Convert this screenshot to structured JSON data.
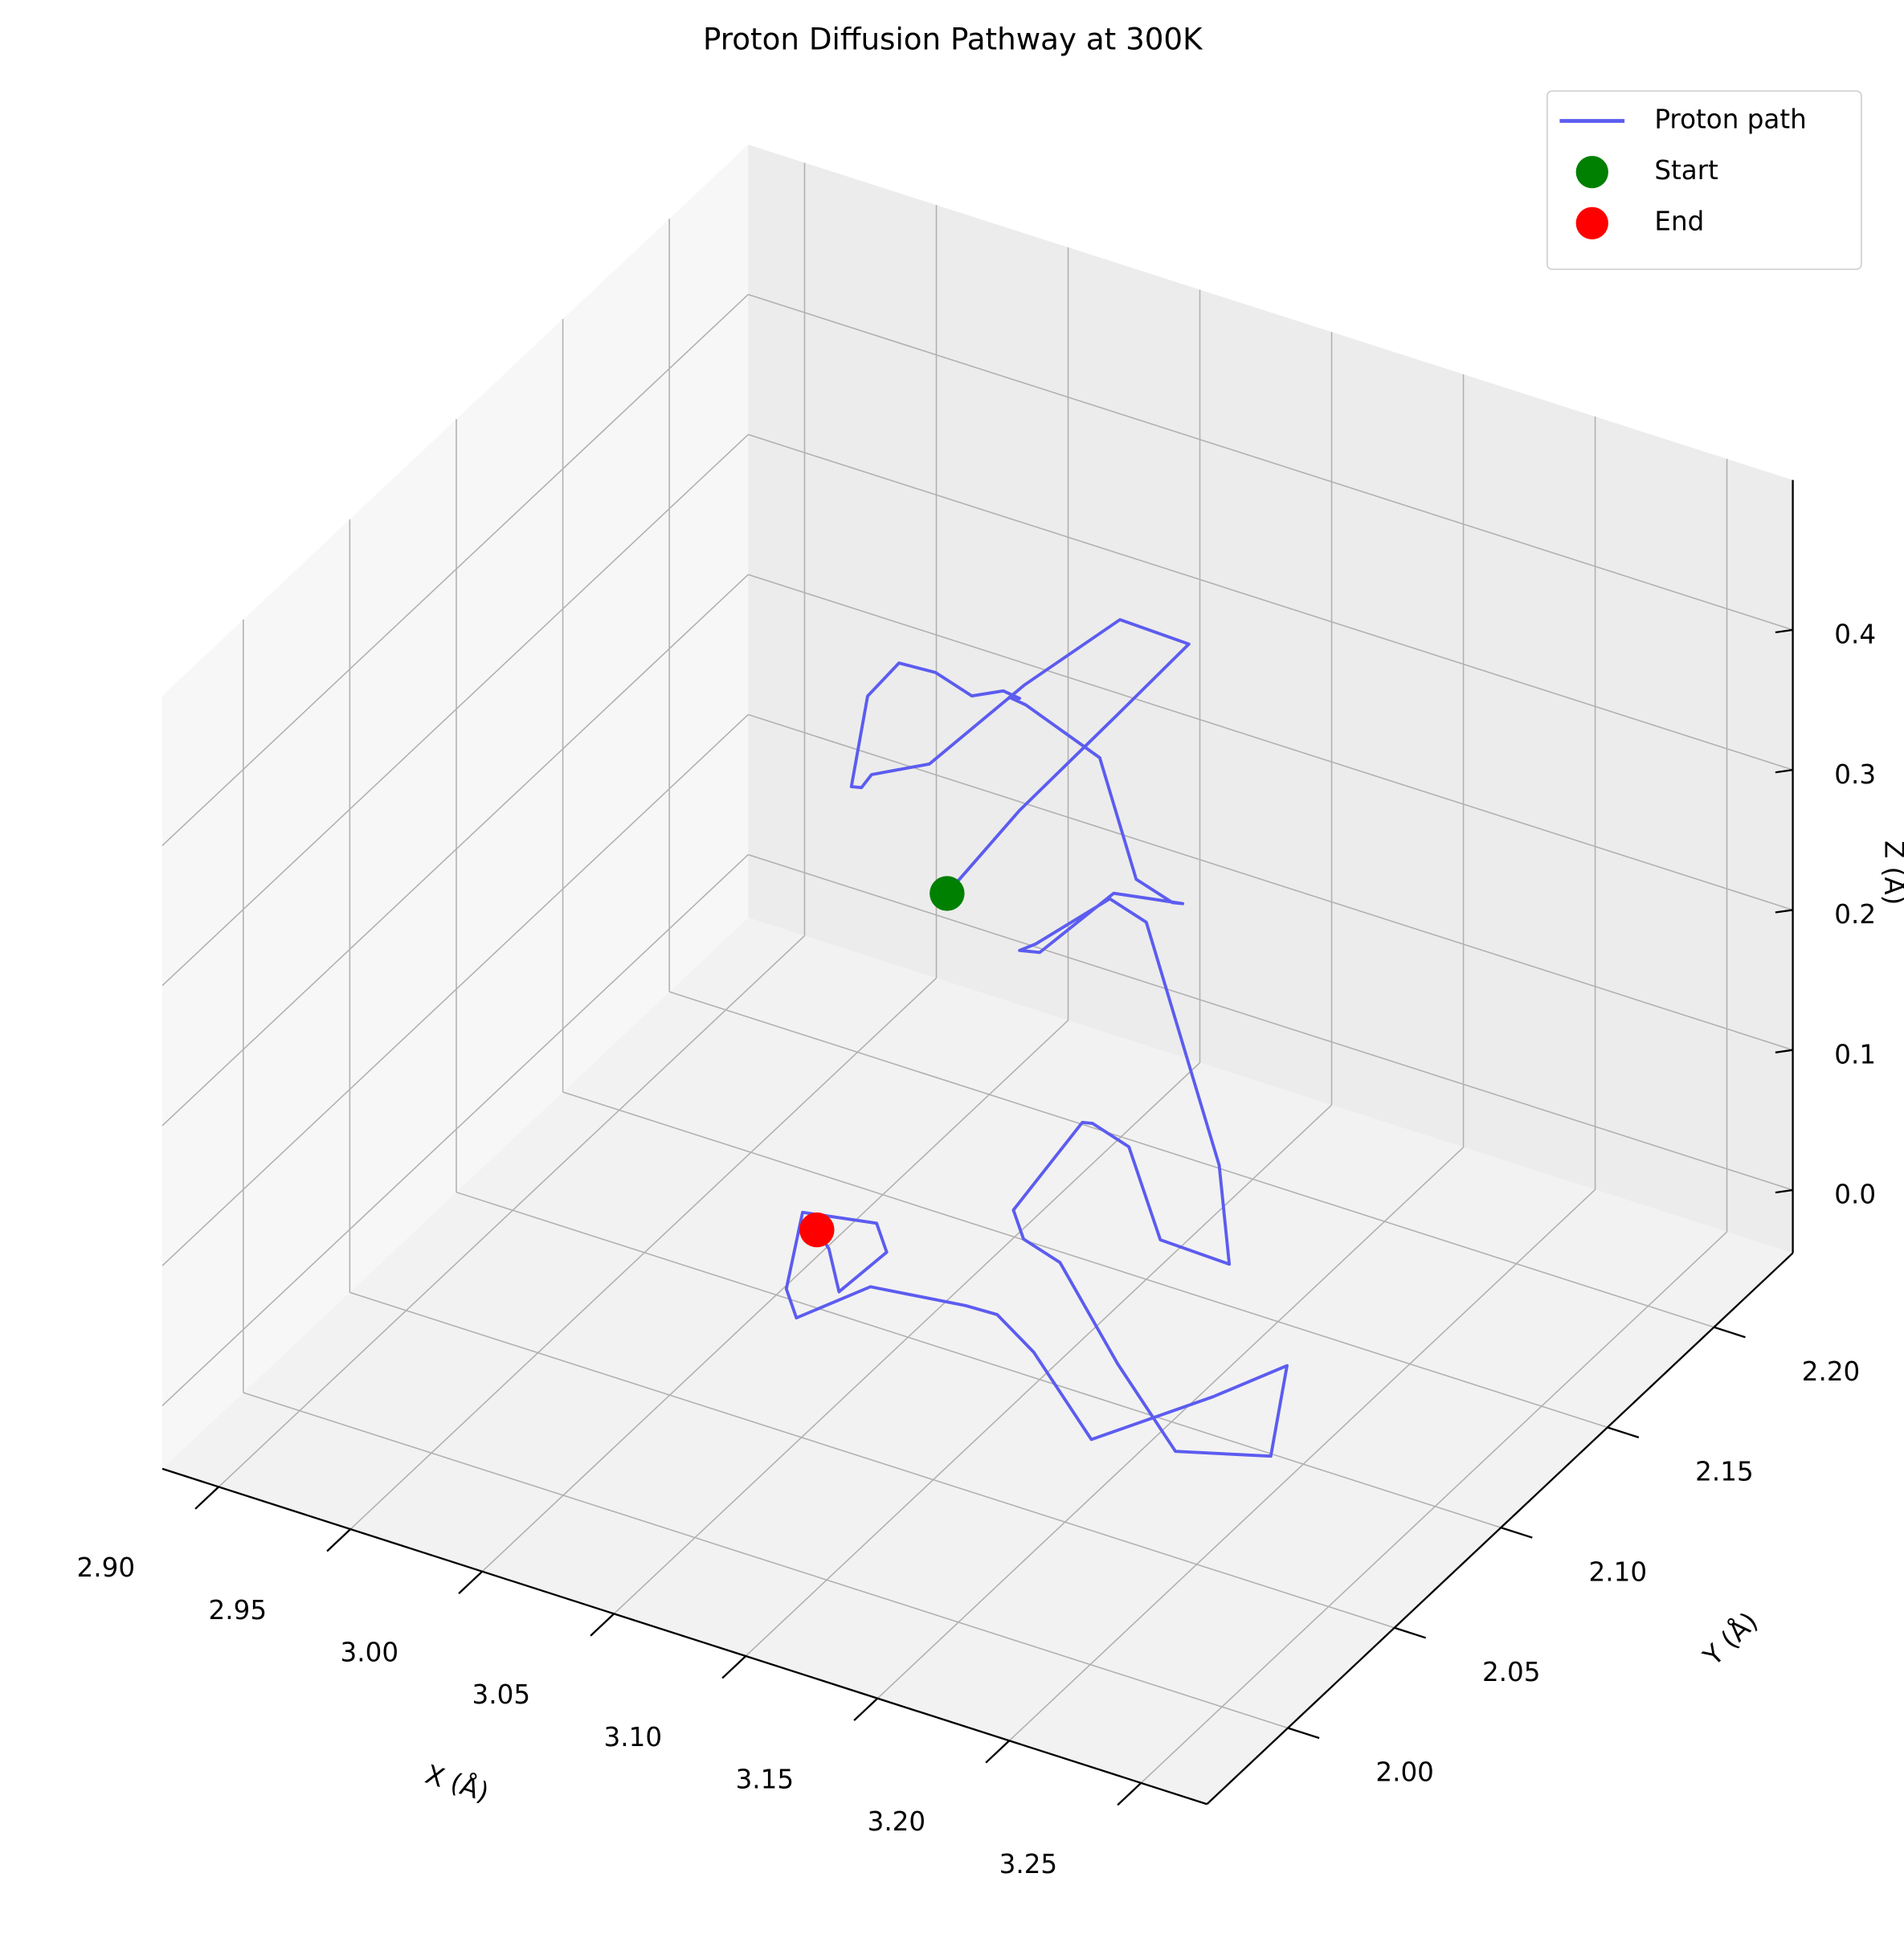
{
  "chart_data": {
    "type": "line3d",
    "title": "Proton Diffusion Pathway at 300K",
    "xlabel": "X (Å)",
    "ylabel": "Y (Å)",
    "zlabel": "Z (Å)",
    "xlim": [
      2.8786,
      3.275
    ],
    "ylim": [
      1.962,
      2.237
    ],
    "zlim": [
      -0.045,
      0.507
    ],
    "xticks": [
      {
        "value": 2.9,
        "label": "2.90"
      },
      2.95,
      {
        "value": 3.0,
        "label": "3.00"
      },
      3.05,
      {
        "value": 3.1,
        "label": "3.10"
      },
      3.15,
      {
        "value": 3.2,
        "label": "3.20"
      },
      3.25
    ],
    "yticks": [
      {
        "value": 2.0,
        "label": "2.00"
      },
      2.05,
      {
        "value": 2.1,
        "label": "2.10"
      },
      2.15,
      {
        "value": 2.2,
        "label": "2.20"
      }
    ],
    "zticks": [
      {
        "value": 0,
        "label": "0.0"
      },
      0.1,
      0.2,
      0.3,
      0.4
    ],
    "grid": true,
    "legend": "upper right",
    "series": [
      {
        "name": "Proton path",
        "color": "#5c5cf0",
        "x": [
          3.043,
          3.06,
          3.08,
          3.1,
          3.09,
          3.07,
          3.05,
          3.02,
          3.0,
          2.98,
          2.97,
          2.99,
          3.02,
          3.05,
          3.07,
          3.06,
          3.04,
          3.03,
          3.05,
          3.08,
          3.11,
          3.13,
          3.12,
          3.1,
          3.08,
          3.06,
          3.05,
          3.07,
          3.1,
          3.13,
          3.16,
          3.18,
          3.17,
          3.15,
          3.12,
          3.1,
          3.09,
          3.11,
          3.14,
          3.17,
          3.2,
          3.22,
          3.21,
          3.19,
          3.16,
          3.13,
          3.1,
          3.08,
          3.06,
          3.04,
          3.02,
          3.01,
          3.03,
          3.05,
          3.04,
          3.02,
          3.013
        ],
        "y": [
          2.127,
          2.14,
          2.16,
          2.17,
          2.15,
          2.13,
          2.11,
          2.12,
          2.14,
          2.16,
          2.18,
          2.17,
          2.15,
          2.13,
          2.12,
          2.14,
          2.16,
          2.18,
          2.19,
          2.17,
          2.15,
          2.13,
          2.11,
          2.1,
          2.12,
          2.14,
          2.16,
          2.17,
          2.15,
          2.13,
          2.11,
          2.09,
          2.07,
          2.08,
          2.1,
          2.12,
          2.1,
          2.08,
          2.06,
          2.05,
          2.04,
          2.06,
          2.08,
          2.07,
          2.05,
          2.06,
          2.08,
          2.09,
          2.07,
          2.06,
          2.08,
          2.1,
          2.11,
          2.09,
          2.08,
          2.1,
          2.103
        ],
        "z": [
          0.229,
          0.28,
          0.33,
          0.38,
          0.42,
          0.39,
          0.35,
          0.31,
          0.26,
          0.22,
          0.25,
          0.3,
          0.34,
          0.37,
          0.4,
          0.36,
          0.32,
          0.28,
          0.24,
          0.2,
          0.23,
          0.27,
          0.3,
          0.26,
          0.22,
          0.18,
          0.15,
          0.18,
          0.21,
          0.17,
          0.13,
          0.1,
          0.14,
          0.18,
          0.15,
          0.11,
          0.07,
          0.09,
          0.12,
          0.08,
          0.05,
          0.03,
          0.06,
          0.04,
          0.02,
          0.05,
          0.03,
          0.01,
          0.04,
          0.02,
          0.0,
          0.02,
          0.01,
          0.03,
          0.01,
          0.0,
          0.005
        ]
      }
    ],
    "markers": [
      {
        "name": "Start",
        "color": "green",
        "x": 3.043,
        "y": 2.127,
        "z": 0.229
      },
      {
        "name": "End",
        "color": "red",
        "x": 3.013,
        "y": 2.103,
        "z": 0.005
      }
    ]
  }
}
